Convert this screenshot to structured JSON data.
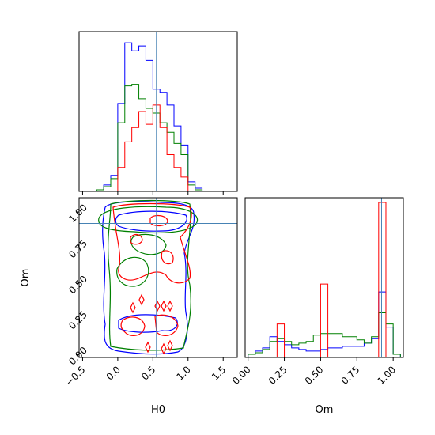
{
  "chart_data": [
    {
      "type": "step-histogram",
      "panel": "H0 marginal",
      "bins": [
        -0.4,
        -0.3,
        -0.2,
        -0.1,
        0.0,
        0.1,
        0.2,
        0.3,
        0.4,
        0.5,
        0.6,
        0.7,
        0.8,
        0.9,
        1.0,
        1.1,
        1.2,
        1.3
      ],
      "series": [
        {
          "color": "#0000ff",
          "values": [
            0.0,
            0.01,
            0.04,
            0.1,
            0.55,
            0.93,
            0.88,
            0.91,
            0.82,
            0.64,
            0.62,
            0.54,
            0.41,
            0.29,
            0.06,
            0.02,
            0.0
          ]
        },
        {
          "color": "#008000",
          "values": [
            0.0,
            0.01,
            0.03,
            0.08,
            0.43,
            0.66,
            0.67,
            0.58,
            0.52,
            0.49,
            0.43,
            0.37,
            0.3,
            0.23,
            0.04,
            0.01,
            0.0
          ]
        },
        {
          "color": "#ff0000",
          "values": [
            0.0,
            0.0,
            0.0,
            0.0,
            0.15,
            0.31,
            0.4,
            0.5,
            0.42,
            0.54,
            0.4,
            0.23,
            0.15,
            0.09,
            0.0,
            0.0,
            0.0
          ]
        }
      ],
      "truth": 0.55,
      "xlim": [
        -0.55,
        1.7
      ]
    },
    {
      "type": "contour",
      "panel": "H0 vs Om",
      "xlabel": "H0",
      "ylabel": "Om",
      "xlim": [
        -0.55,
        1.7
      ],
      "ylim": [
        -0.02,
        1.1
      ],
      "xticks": [
        "−0.5",
        "0.0",
        "0.5",
        "1.0",
        "1.5"
      ],
      "yticks": [
        "0.00",
        "0.25",
        "0.50",
        "0.75",
        "1.00"
      ],
      "truth": {
        "x": 0.55,
        "y": 0.92
      },
      "series_colors": [
        "#0000ff",
        "#008000",
        "#ff0000"
      ]
    },
    {
      "type": "step-histogram",
      "panel": "Om marginal",
      "xlabel": "Om",
      "xticks": [
        "0.00",
        "0.25",
        "0.50",
        "0.75",
        "1.00"
      ],
      "bins": [
        0.0,
        0.05,
        0.1,
        0.15,
        0.2,
        0.25,
        0.3,
        0.35,
        0.4,
        0.45,
        0.5,
        0.55,
        0.6,
        0.65,
        0.7,
        0.75,
        0.8,
        0.85,
        0.9,
        0.95,
        1.0,
        1.05
      ],
      "series": [
        {
          "color": "#0000ff",
          "values": [
            0.02,
            0.04,
            0.06,
            0.13,
            0.1,
            0.08,
            0.06,
            0.05,
            0.04,
            0.04,
            0.05,
            0.06,
            0.06,
            0.07,
            0.07,
            0.07,
            0.09,
            0.12,
            0.41,
            0.19,
            0.02
          ]
        },
        {
          "color": "#008000",
          "values": [
            0.02,
            0.03,
            0.05,
            0.1,
            0.12,
            0.1,
            0.08,
            0.09,
            0.1,
            0.14,
            0.15,
            0.15,
            0.15,
            0.13,
            0.13,
            0.11,
            0.09,
            0.13,
            0.28,
            0.21,
            0.02
          ]
        },
        {
          "color": "#ff0000",
          "values": [
            0.0,
            0.0,
            0.0,
            0.0,
            0.21,
            0.0,
            0.0,
            0.0,
            0.0,
            0.0,
            0.46,
            0.0,
            0.0,
            0.0,
            0.0,
            0.0,
            0.0,
            0.0,
            0.97,
            0.0,
            0.0
          ]
        }
      ],
      "truth": 0.92,
      "xlim": [
        -0.02,
        1.07
      ]
    }
  ]
}
